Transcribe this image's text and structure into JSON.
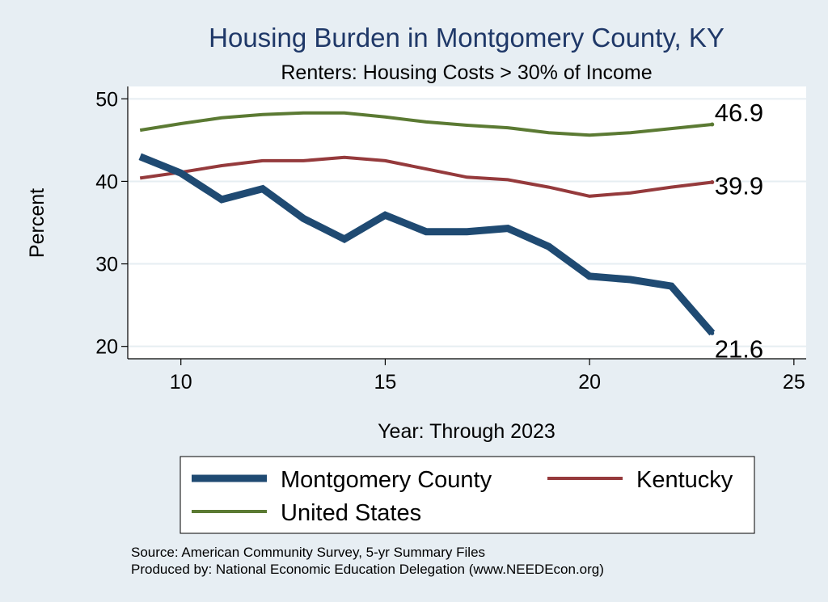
{
  "chart_data": {
    "type": "line",
    "title": "Housing Burden in Montgomery County, KY",
    "subtitle": "Renters: Housing Costs > 30% of Income",
    "xlabel": "Year: Through 2023",
    "ylabel": "Percent",
    "xlim": [
      8.7,
      25.3
    ],
    "ylim": [
      18.5,
      51.5
    ],
    "xticks": [
      10,
      15,
      20,
      25
    ],
    "yticks": [
      20,
      30,
      40,
      50
    ],
    "grid": true,
    "legend_position": "bottom",
    "series": [
      {
        "name": "Montgomery County",
        "color": "#1f4a72",
        "line_width": "thick",
        "x": [
          9,
          10,
          11,
          12,
          13,
          14,
          15,
          16,
          17,
          18,
          19,
          20,
          21,
          22,
          23
        ],
        "y": [
          43.0,
          41.0,
          37.8,
          39.1,
          35.5,
          33.0,
          35.9,
          33.9,
          33.9,
          34.3,
          32.1,
          28.5,
          28.1,
          27.3,
          21.6
        ],
        "end_label": "21.6"
      },
      {
        "name": "Kentucky",
        "color": "#953a3c",
        "line_width": "medium",
        "x": [
          9,
          10,
          11,
          12,
          13,
          14,
          15,
          16,
          17,
          18,
          19,
          20,
          21,
          22,
          23
        ],
        "y": [
          40.4,
          41.1,
          41.9,
          42.5,
          42.5,
          42.9,
          42.5,
          41.5,
          40.5,
          40.2,
          39.3,
          38.2,
          38.6,
          39.3,
          39.9
        ],
        "end_label": "39.9"
      },
      {
        "name": "United States",
        "color": "#5b7a33",
        "line_width": "medium",
        "x": [
          9,
          10,
          11,
          12,
          13,
          14,
          15,
          16,
          17,
          18,
          19,
          20,
          21,
          22,
          23
        ],
        "y": [
          46.2,
          47.0,
          47.7,
          48.1,
          48.3,
          48.3,
          47.8,
          47.2,
          46.8,
          46.5,
          45.9,
          45.6,
          45.9,
          46.4,
          46.9
        ],
        "end_label": "46.9"
      }
    ],
    "notes": [
      "Source: American Community Survey, 5-yr Summary Files",
      "Produced by: National Economic Education Delegation (www.NEEDEcon.org)"
    ]
  }
}
